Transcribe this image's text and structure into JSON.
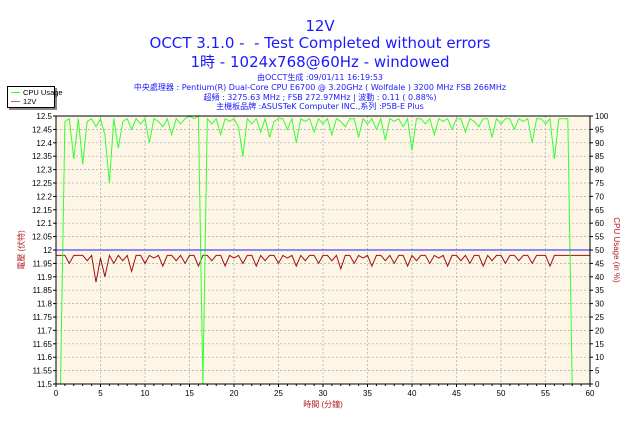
{
  "header": {
    "title": "12V",
    "subtitle1": "OCCT 3.1.0 -  - Test Completed without errors",
    "subtitle2": "1時 - 1024x768@60Hz - windowed",
    "info": [
      "由OCCT生成 :09/01/11 16:19:53",
      "中央處理器 : Pentium(R) Dual-Core CPU E6700 @ 3.20GHz ( Wolfdale ) 3200 MHz FSB 266MHz",
      "超頻 : 3275.63 MHz ; FSB 272.97MHz | 波動 : 0.11 ( 0.88%)",
      "主機板品牌 :ASUSTeK Computer INC.,系列 :P5B-E Plus"
    ]
  },
  "colors": {
    "cpu": "#33ff33",
    "voltage": "#a01010",
    "reference": "#4a4aff",
    "plot_bg": "#fdf6e6",
    "title": "#1a1aff",
    "axis_label": "#b02020"
  },
  "chart_data": {
    "type": "line",
    "title": "12V",
    "xlabel": "時間 (分鐘)",
    "ylabel": "電壓 (伏特)",
    "y2label": "CPU Usage (in %)",
    "xlim": [
      0,
      60
    ],
    "ylim": [
      11.5,
      12.5
    ],
    "y2lim": [
      0,
      100
    ],
    "xticks": [
      0,
      5,
      10,
      15,
      20,
      25,
      30,
      35,
      40,
      45,
      50,
      55,
      60
    ],
    "yticks": [
      "11.5",
      "11.55",
      "11.6",
      "11.65",
      "11.7",
      "11.75",
      "11.8",
      "11.85",
      "11.9",
      "11.95",
      "12",
      "12.05",
      "12.1",
      "12.15",
      "12.2",
      "12.25",
      "12.3",
      "12.35",
      "12.4",
      "12.45",
      "12.5"
    ],
    "y2ticks": [
      0,
      5,
      10,
      15,
      20,
      25,
      30,
      35,
      40,
      45,
      50,
      55,
      60,
      65,
      70,
      75,
      80,
      85,
      90,
      95,
      100
    ],
    "grid": true,
    "legend_placement": "top-left",
    "reference_line": 12.0,
    "x_step": 0.5,
    "series": [
      {
        "name": "CPU Usage",
        "axis": "right",
        "values": [
          0,
          0,
          98,
          99,
          84,
          99,
          82,
          98,
          99,
          96,
          99,
          93,
          75,
          99,
          88,
          98,
          99,
          95,
          99,
          97,
          99,
          90,
          99,
          98,
          96,
          99,
          93,
          99,
          97,
          99,
          100,
          99,
          100,
          0,
          99,
          97,
          99,
          93,
          99,
          98,
          99,
          96,
          85,
          99,
          97,
          99,
          94,
          99,
          92,
          98,
          99,
          99,
          95,
          99,
          90,
          99,
          98,
          99,
          94,
          99,
          97,
          99,
          93,
          99,
          98,
          96,
          99,
          99,
          92,
          99,
          97,
          99,
          95,
          99,
          91,
          99,
          98,
          99,
          96,
          99,
          87,
          99,
          99,
          97,
          99,
          93,
          99,
          98,
          99,
          95,
          99,
          99,
          94,
          99,
          98,
          96,
          99,
          99,
          92,
          99,
          97,
          99,
          99,
          95,
          99,
          98,
          99,
          90,
          99,
          99,
          97,
          99,
          84,
          99,
          99,
          99,
          0,
          0,
          0,
          0,
          0
        ]
      },
      {
        "name": "12V",
        "axis": "left",
        "values": [
          11.98,
          11.98,
          11.98,
          11.95,
          11.98,
          11.98,
          11.98,
          11.96,
          11.98,
          11.88,
          11.97,
          11.9,
          11.98,
          11.95,
          11.98,
          11.96,
          11.98,
          11.92,
          11.98,
          11.98,
          11.95,
          11.98,
          11.97,
          11.98,
          11.94,
          11.98,
          11.98,
          11.96,
          11.98,
          11.95,
          11.98,
          11.98,
          11.94,
          11.98,
          11.98,
          11.96,
          11.98,
          11.98,
          11.94,
          11.98,
          11.97,
          11.98,
          11.95,
          11.98,
          11.98,
          11.94,
          11.98,
          11.96,
          11.98,
          11.98,
          11.95,
          11.98,
          11.97,
          11.98,
          11.94,
          11.98,
          11.96,
          11.98,
          11.98,
          11.95,
          11.98,
          11.98,
          11.96,
          11.98,
          11.93,
          11.98,
          11.98,
          11.95,
          11.98,
          11.97,
          11.98,
          11.94,
          11.98,
          11.98,
          11.96,
          11.98,
          11.95,
          11.98,
          11.98,
          11.94,
          11.98,
          11.96,
          11.98,
          11.98,
          11.95,
          11.98,
          11.97,
          11.98,
          11.94,
          11.98,
          11.98,
          11.96,
          11.98,
          11.95,
          11.98,
          11.98,
          11.94,
          11.98,
          11.96,
          11.98,
          11.98,
          11.95,
          11.98,
          11.98,
          11.96,
          11.98,
          11.98,
          11.95,
          11.98,
          11.98,
          11.98,
          11.94,
          11.98,
          11.98,
          11.98,
          11.98,
          11.98,
          11.98,
          11.98,
          11.98,
          11.98
        ]
      }
    ]
  }
}
